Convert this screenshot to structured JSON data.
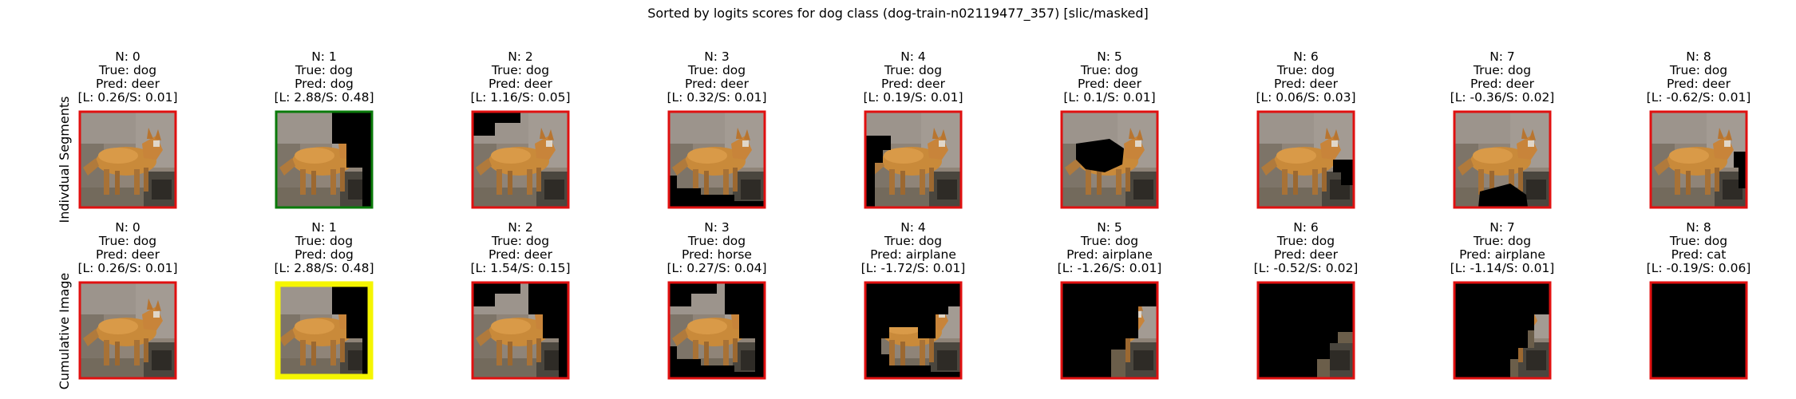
{
  "title": "Sorted by logits scores for dog class (dog-train-n02119477_357) [slic/masked]",
  "row_labels": [
    "Indivdual Segments",
    "Cumulative Image"
  ],
  "image_icon": "fox-thumbnail-icon",
  "colors": {
    "wrong": "#e01010",
    "correct": "#0a7a0a",
    "best": "#f5f500",
    "mask": "#000000"
  },
  "rows": [
    {
      "id": "individual",
      "panels": [
        {
          "n": "N: 0",
          "true": "True: dog",
          "pred": "Pred: deer",
          "score": "[L: 0.26/S: 0.01]",
          "status": "wrong",
          "mask": "none"
        },
        {
          "n": "N: 1",
          "true": "True: dog",
          "pred": "Pred: dog",
          "score": "[L: 2.88/S: 0.48]",
          "status": "correct",
          "mask": "topright"
        },
        {
          "n": "N: 2",
          "true": "True: dog",
          "pred": "Pred: deer",
          "score": "[L: 1.16/S: 0.05]",
          "status": "wrong",
          "mask": "topleft"
        },
        {
          "n": "N: 3",
          "true": "True: dog",
          "pred": "Pred: deer",
          "score": "[L: 0.32/S: 0.01]",
          "status": "wrong",
          "mask": "bottom"
        },
        {
          "n": "N: 4",
          "true": "True: dog",
          "pred": "Pred: deer",
          "score": "[L: 0.19/S: 0.01]",
          "status": "wrong",
          "mask": "left"
        },
        {
          "n": "N: 5",
          "true": "True: dog",
          "pred": "Pred: deer",
          "score": "[L: 0.1/S: 0.01]",
          "status": "wrong",
          "mask": "body"
        },
        {
          "n": "N: 6",
          "true": "True: dog",
          "pred": "Pred: deer",
          "score": "[L: 0.06/S: 0.03]",
          "status": "wrong",
          "mask": "rightmid"
        },
        {
          "n": "N: 7",
          "true": "True: dog",
          "pred": "Pred: deer",
          "score": "[L: -0.36/S: 0.02]",
          "status": "wrong",
          "mask": "legs"
        },
        {
          "n": "N: 8",
          "true": "True: dog",
          "pred": "Pred: deer",
          "score": "[L: -0.62/S: 0.01]",
          "status": "wrong",
          "mask": "rightedge"
        }
      ]
    },
    {
      "id": "cumulative",
      "panels": [
        {
          "n": "N: 0",
          "true": "True: dog",
          "pred": "Pred: deer",
          "score": "[L: 0.26/S: 0.01]",
          "status": "wrong",
          "mask": "none"
        },
        {
          "n": "N: 1",
          "true": "True: dog",
          "pred": "Pred: dog",
          "score": "[L: 2.88/S: 0.48]",
          "status": "best",
          "mask": "topright"
        },
        {
          "n": "N: 2",
          "true": "True: dog",
          "pred": "Pred: deer",
          "score": "[L: 1.54/S: 0.15]",
          "status": "wrong",
          "mask": "cum2"
        },
        {
          "n": "N: 3",
          "true": "True: dog",
          "pred": "Pred: horse",
          "score": "[L: 0.27/S: 0.04]",
          "status": "wrong",
          "mask": "cum3"
        },
        {
          "n": "N: 4",
          "true": "True: dog",
          "pred": "Pred: airplane",
          "score": "[L: -1.72/S: 0.01]",
          "status": "wrong",
          "mask": "cum4"
        },
        {
          "n": "N: 5",
          "true": "True: dog",
          "pred": "Pred: airplane",
          "score": "[L: -1.26/S: 0.01]",
          "status": "wrong",
          "mask": "cum5"
        },
        {
          "n": "N: 6",
          "true": "True: dog",
          "pred": "Pred: deer",
          "score": "[L: -0.52/S: 0.02]",
          "status": "wrong",
          "mask": "cum6"
        },
        {
          "n": "N: 7",
          "true": "True: dog",
          "pred": "Pred: airplane",
          "score": "[L: -1.14/S: 0.01]",
          "status": "wrong",
          "mask": "cum7"
        },
        {
          "n": "N: 8",
          "true": "True: dog",
          "pred": "Pred: cat",
          "score": "[L: -0.19/S: 0.06]",
          "status": "wrong",
          "mask": "all"
        }
      ]
    }
  ]
}
